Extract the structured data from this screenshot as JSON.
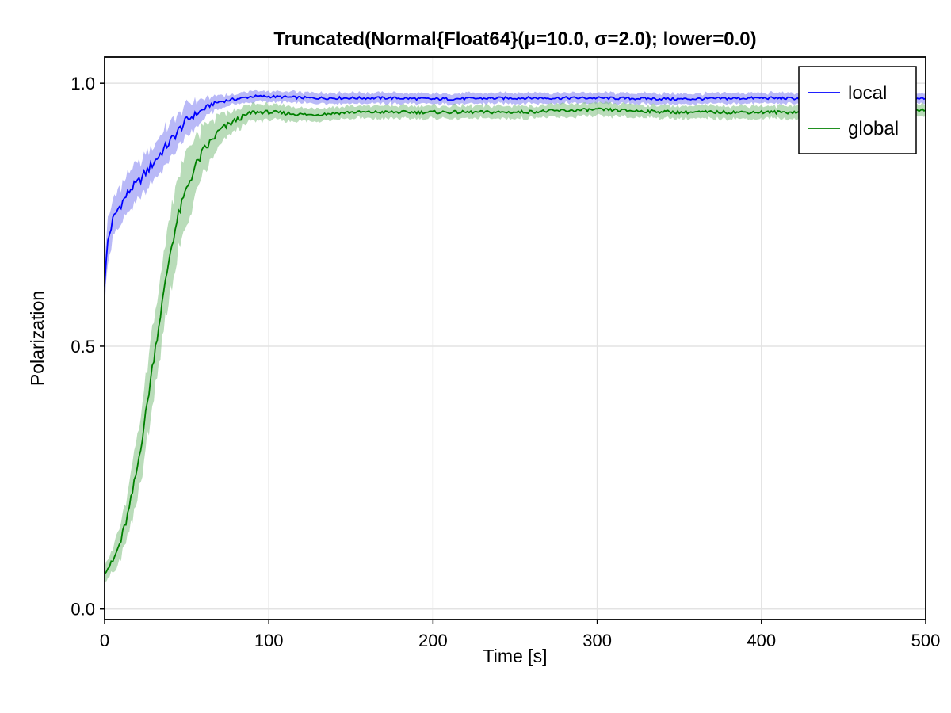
{
  "chart_data": {
    "type": "line",
    "title": "Truncated(Normal{Float64}(μ=10.0, σ=2.0); lower=0.0)",
    "xlabel": "Time [s]",
    "ylabel": "Polarization",
    "xlim": [
      0,
      500
    ],
    "ylim": [
      -0.02,
      1.05
    ],
    "x_ticks": [
      0,
      100,
      200,
      300,
      400,
      500
    ],
    "x_tick_labels": [
      "0",
      "100",
      "200",
      "300",
      "400",
      "500"
    ],
    "y_ticks": [
      0.0,
      0.5,
      1.0
    ],
    "y_tick_labels": [
      "0.0",
      "0.5",
      "1.0"
    ],
    "grid": true,
    "legend_position": "top-right",
    "series": [
      {
        "name": "local",
        "color": "#0000ff",
        "band_color": "#8080f0",
        "x": [
          0,
          2,
          5,
          8,
          12,
          16,
          20,
          25,
          30,
          35,
          40,
          45,
          50,
          55,
          60,
          65,
          70,
          80,
          90,
          100,
          125,
          150,
          175,
          200,
          250,
          300,
          350,
          400,
          450,
          500
        ],
        "values": [
          0.62,
          0.7,
          0.74,
          0.76,
          0.78,
          0.8,
          0.81,
          0.83,
          0.85,
          0.87,
          0.89,
          0.91,
          0.93,
          0.94,
          0.95,
          0.96,
          0.965,
          0.97,
          0.975,
          0.975,
          0.972,
          0.972,
          0.972,
          0.97,
          0.972,
          0.972,
          0.97,
          0.972,
          0.97,
          0.972
        ],
        "band_half_width": [
          0.05,
          0.04,
          0.035,
          0.035,
          0.035,
          0.035,
          0.035,
          0.035,
          0.035,
          0.035,
          0.035,
          0.035,
          0.03,
          0.025,
          0.02,
          0.015,
          0.012,
          0.01,
          0.01,
          0.01,
          0.01,
          0.01,
          0.01,
          0.01,
          0.01,
          0.01,
          0.01,
          0.01,
          0.01,
          0.01
        ]
      },
      {
        "name": "global",
        "color": "#008000",
        "band_color": "#7fc07f",
        "x": [
          0,
          5,
          10,
          15,
          20,
          25,
          30,
          35,
          40,
          45,
          50,
          55,
          60,
          65,
          70,
          80,
          90,
          100,
          125,
          150,
          175,
          200,
          250,
          300,
          350,
          400,
          450,
          500
        ],
        "values": [
          0.07,
          0.09,
          0.13,
          0.19,
          0.27,
          0.37,
          0.48,
          0.58,
          0.68,
          0.75,
          0.8,
          0.84,
          0.87,
          0.89,
          0.91,
          0.93,
          0.945,
          0.945,
          0.94,
          0.945,
          0.945,
          0.945,
          0.945,
          0.95,
          0.945,
          0.945,
          0.945,
          0.95
        ],
        "band_half_width": [
          0.015,
          0.025,
          0.035,
          0.045,
          0.055,
          0.065,
          0.07,
          0.075,
          0.075,
          0.07,
          0.065,
          0.055,
          0.045,
          0.035,
          0.03,
          0.02,
          0.015,
          0.015,
          0.012,
          0.012,
          0.012,
          0.012,
          0.012,
          0.012,
          0.012,
          0.012,
          0.012,
          0.012
        ]
      }
    ]
  }
}
